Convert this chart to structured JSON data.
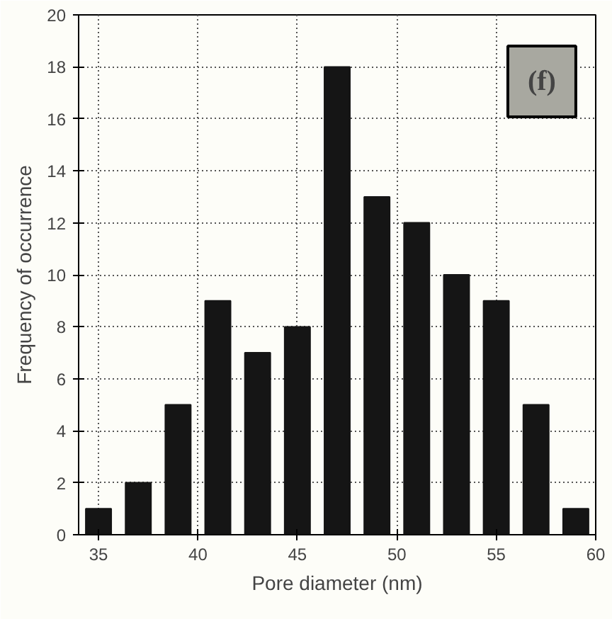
{
  "chart_data": {
    "type": "histogram",
    "xlabel": "Pore diameter (nm)",
    "ylabel": "Frequency of occurrence",
    "bins": [
      34,
      36,
      38,
      40,
      42,
      44,
      46,
      48,
      50,
      52,
      54,
      56,
      58,
      60
    ],
    "values": [
      1,
      2,
      5,
      9,
      7,
      8,
      18,
      13,
      12,
      10,
      9,
      5,
      1
    ],
    "color": "#151515",
    "xlim": [
      34,
      60
    ],
    "xticks": [
      35,
      40,
      45,
      50,
      55,
      60
    ],
    "ylim": [
      0,
      20
    ],
    "yticks": [
      0,
      2,
      4,
      6,
      8,
      10,
      12,
      14,
      16,
      18,
      20
    ],
    "grid": true,
    "annotations": [
      "(f)"
    ]
  }
}
